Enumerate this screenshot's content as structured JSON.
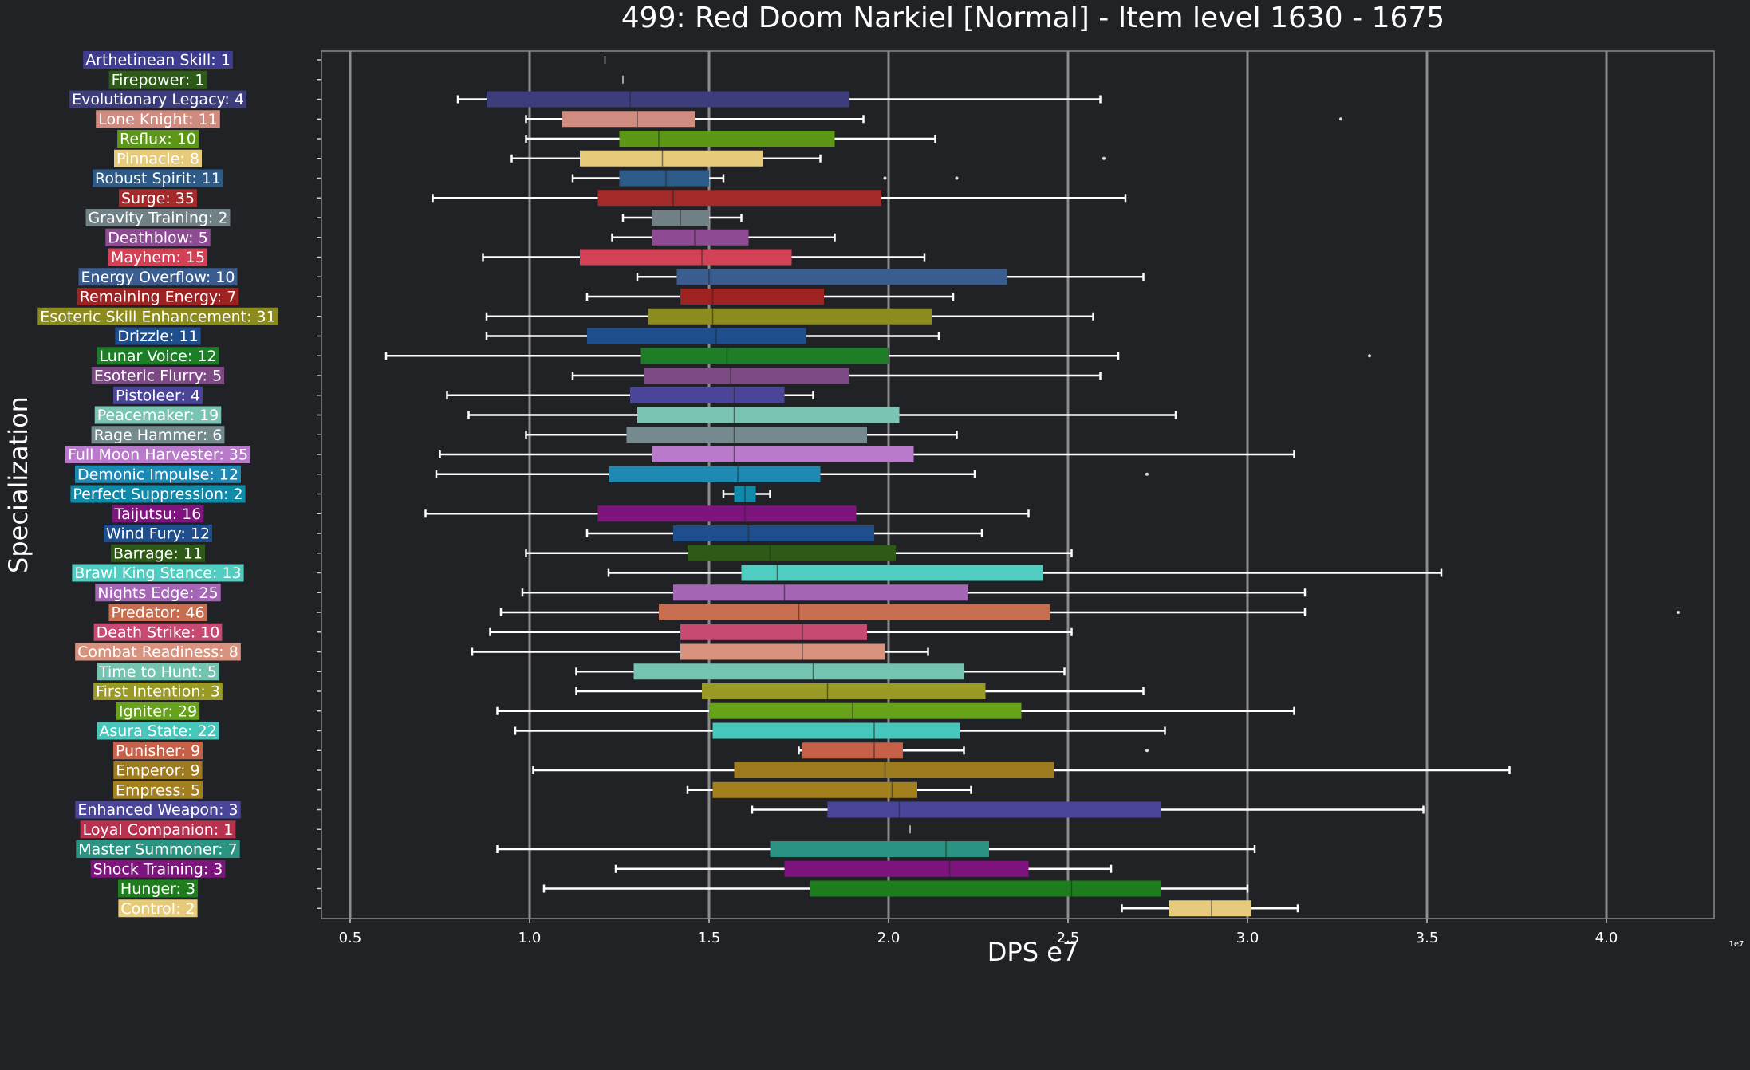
{
  "chart_data": {
    "type": "box",
    "orientation": "horizontal",
    "title": "499: Red Doom Narkiel [Normal] - Item level 1630 - 1675",
    "xlabel": "DPS e7",
    "ylabel": "Specialization",
    "offset_label": "1e7",
    "xlim": [
      0.42,
      4.3
    ],
    "xticks": [
      0.5,
      1.0,
      1.5,
      2.0,
      2.5,
      3.0,
      3.5,
      4.0
    ],
    "xtick_labels": [
      "0.5",
      "1.0",
      "1.5",
      "2.0",
      "2.5",
      "3.0",
      "3.5",
      "4.0"
    ],
    "grid": "vertical",
    "categories": [
      {
        "label": "Arthetinean Skill: 1",
        "color": "#3e3d8f",
        "whislo": 1.21,
        "q1": 1.21,
        "med": 1.21,
        "q3": 1.21,
        "whishi": 1.21,
        "fliers": []
      },
      {
        "label": "Firepower: 1",
        "color": "#2e5a17",
        "whislo": 1.26,
        "q1": 1.26,
        "med": 1.26,
        "q3": 1.26,
        "whishi": 1.26,
        "fliers": []
      },
      {
        "label": "Evolutionary Legacy: 4",
        "color": "#3e3d7b",
        "whislo": 0.8,
        "q1": 0.88,
        "med": 1.28,
        "q3": 1.89,
        "whishi": 2.59,
        "fliers": []
      },
      {
        "label": "Lone Knight: 11",
        "color": "#d08c80",
        "whislo": 0.99,
        "q1": 1.09,
        "med": 1.3,
        "q3": 1.46,
        "whishi": 1.93,
        "fliers": [
          3.26
        ]
      },
      {
        "label": "Reflux: 10",
        "color": "#5c9716",
        "whislo": 0.99,
        "q1": 1.25,
        "med": 1.36,
        "q3": 1.85,
        "whishi": 2.13,
        "fliers": []
      },
      {
        "label": "Pinnacle: 8",
        "color": "#e6cc7a",
        "whislo": 0.95,
        "q1": 1.14,
        "med": 1.37,
        "q3": 1.65,
        "whishi": 1.81,
        "fliers": [
          2.6
        ]
      },
      {
        "label": "Robust Spirit: 11",
        "color": "#2e5a87",
        "whislo": 1.12,
        "q1": 1.25,
        "med": 1.38,
        "q3": 1.5,
        "whishi": 1.54,
        "fliers": [
          1.99,
          2.19
        ]
      },
      {
        "label": "Surge: 35",
        "color": "#a22a2a",
        "whislo": 0.73,
        "q1": 1.19,
        "med": 1.4,
        "q3": 1.98,
        "whishi": 2.66,
        "fliers": []
      },
      {
        "label": "Gravity Training: 2",
        "color": "#708085",
        "whislo": 1.26,
        "q1": 1.34,
        "med": 1.42,
        "q3": 1.5,
        "whishi": 1.59,
        "fliers": []
      },
      {
        "label": "Deathblow: 5",
        "color": "#8e4b93",
        "whislo": 1.23,
        "q1": 1.34,
        "med": 1.46,
        "q3": 1.61,
        "whishi": 1.85,
        "fliers": []
      },
      {
        "label": "Mayhem: 15",
        "color": "#d24155",
        "whislo": 0.87,
        "q1": 1.14,
        "med": 1.48,
        "q3": 1.73,
        "whishi": 2.1,
        "fliers": []
      },
      {
        "label": "Energy Overflow: 10",
        "color": "#3a5d8f",
        "whislo": 1.3,
        "q1": 1.41,
        "med": 1.5,
        "q3": 2.33,
        "whishi": 2.71,
        "fliers": []
      },
      {
        "label": "Remaining Energy: 7",
        "color": "#9e2222",
        "whislo": 1.16,
        "q1": 1.42,
        "med": 1.51,
        "q3": 1.82,
        "whishi": 2.18,
        "fliers": []
      },
      {
        "label": "Esoteric Skill Enhancement: 31",
        "color": "#8c8c1e",
        "whislo": 0.88,
        "q1": 1.33,
        "med": 1.51,
        "q3": 2.12,
        "whishi": 2.57,
        "fliers": []
      },
      {
        "label": "Drizzle: 11",
        "color": "#1e4e8c",
        "whislo": 0.88,
        "q1": 1.16,
        "med": 1.52,
        "q3": 1.77,
        "whishi": 2.14,
        "fliers": []
      },
      {
        "label": "Lunar Voice: 12",
        "color": "#1e7e28",
        "whislo": 0.6,
        "q1": 1.31,
        "med": 1.55,
        "q3": 2.0,
        "whishi": 2.64,
        "fliers": [
          3.34
        ]
      },
      {
        "label": "Esoteric Flurry: 5",
        "color": "#7e4a86",
        "whislo": 1.12,
        "q1": 1.32,
        "med": 1.56,
        "q3": 1.89,
        "whishi": 2.59,
        "fliers": []
      },
      {
        "label": "Pistoleer: 4",
        "color": "#4a4599",
        "whislo": 0.77,
        "q1": 1.28,
        "med": 1.57,
        "q3": 1.71,
        "whishi": 1.79,
        "fliers": []
      },
      {
        "label": "Peacemaker: 19",
        "color": "#79c4b3",
        "whislo": 0.83,
        "q1": 1.3,
        "med": 1.57,
        "q3": 2.03,
        "whishi": 2.8,
        "fliers": []
      },
      {
        "label": "Rage Hammer: 6",
        "color": "#748a8f",
        "whislo": 0.99,
        "q1": 1.27,
        "med": 1.57,
        "q3": 1.94,
        "whishi": 2.19,
        "fliers": []
      },
      {
        "label": "Full Moon Harvester: 35",
        "color": "#b97acb",
        "whislo": 0.75,
        "q1": 1.34,
        "med": 1.57,
        "q3": 2.07,
        "whishi": 3.13,
        "fliers": []
      },
      {
        "label": "Demonic Impulse: 12",
        "color": "#1e89b3",
        "whislo": 0.74,
        "q1": 1.22,
        "med": 1.58,
        "q3": 1.81,
        "whishi": 2.24,
        "fliers": [
          2.72
        ]
      },
      {
        "label": "Perfect Suppression: 2",
        "color": "#0f8aa8",
        "whislo": 1.54,
        "q1": 1.57,
        "med": 1.6,
        "q3": 1.63,
        "whishi": 1.67,
        "fliers": []
      },
      {
        "label": "Taijutsu: 16",
        "color": "#7e147e",
        "whislo": 0.71,
        "q1": 1.19,
        "med": 1.6,
        "q3": 1.91,
        "whishi": 2.39,
        "fliers": []
      },
      {
        "label": "Wind Fury: 12",
        "color": "#1e4e8c",
        "whislo": 1.16,
        "q1": 1.4,
        "med": 1.61,
        "q3": 1.96,
        "whishi": 2.26,
        "fliers": []
      },
      {
        "label": "Barrage: 11",
        "color": "#2e5a17",
        "whislo": 0.99,
        "q1": 1.44,
        "med": 1.67,
        "q3": 2.02,
        "whishi": 2.51,
        "fliers": []
      },
      {
        "label": "Brawl King Stance: 13",
        "color": "#50cdc0",
        "whislo": 1.22,
        "q1": 1.59,
        "med": 1.69,
        "q3": 2.43,
        "whishi": 3.54,
        "fliers": []
      },
      {
        "label": "Nights Edge: 25",
        "color": "#a466b5",
        "whislo": 0.98,
        "q1": 1.4,
        "med": 1.71,
        "q3": 2.22,
        "whishi": 3.16,
        "fliers": []
      },
      {
        "label": "Predator: 46",
        "color": "#c76e50",
        "whislo": 0.92,
        "q1": 1.36,
        "med": 1.75,
        "q3": 2.45,
        "whishi": 3.16,
        "fliers": [
          4.2
        ]
      },
      {
        "label": "Death Strike: 10",
        "color": "#c74a73",
        "whislo": 0.89,
        "q1": 1.42,
        "med": 1.76,
        "q3": 1.94,
        "whishi": 2.51,
        "fliers": []
      },
      {
        "label": "Combat Readiness: 8",
        "color": "#d9927d",
        "whislo": 0.84,
        "q1": 1.42,
        "med": 1.76,
        "q3": 1.99,
        "whishi": 2.11,
        "fliers": []
      },
      {
        "label": "Time to Hunt: 5",
        "color": "#75c4b1",
        "whislo": 1.13,
        "q1": 1.29,
        "med": 1.79,
        "q3": 2.21,
        "whishi": 2.49,
        "fliers": []
      },
      {
        "label": "First Intention: 3",
        "color": "#9a9a26",
        "whislo": 1.13,
        "q1": 1.48,
        "med": 1.83,
        "q3": 2.27,
        "whishi": 2.71,
        "fliers": []
      },
      {
        "label": "Igniter: 29",
        "color": "#66a21a",
        "whislo": 0.91,
        "q1": 1.5,
        "med": 1.9,
        "q3": 2.37,
        "whishi": 3.13,
        "fliers": []
      },
      {
        "label": "Asura State: 22",
        "color": "#47c6bb",
        "whislo": 0.96,
        "q1": 1.51,
        "med": 1.96,
        "q3": 2.2,
        "whishi": 2.77,
        "fliers": []
      },
      {
        "label": "Punisher: 9",
        "color": "#c76048",
        "whislo": 1.75,
        "q1": 1.76,
        "med": 1.96,
        "q3": 2.04,
        "whishi": 2.21,
        "fliers": [
          2.72
        ]
      },
      {
        "label": "Emperor: 9",
        "color": "#9e7a1e",
        "whislo": 1.01,
        "q1": 1.57,
        "med": 1.99,
        "q3": 2.46,
        "whishi": 3.73,
        "fliers": []
      },
      {
        "label": "Empress: 5",
        "color": "#a3801e",
        "whislo": 1.44,
        "q1": 1.51,
        "med": 2.01,
        "q3": 2.08,
        "whishi": 2.23,
        "fliers": []
      },
      {
        "label": "Enhanced Weapon: 3",
        "color": "#4a4599",
        "whislo": 1.62,
        "q1": 1.83,
        "med": 2.03,
        "q3": 2.76,
        "whishi": 3.49,
        "fliers": []
      },
      {
        "label": "Loyal Companion: 1",
        "color": "#b8324f",
        "whislo": 2.06,
        "q1": 2.06,
        "med": 2.06,
        "q3": 2.06,
        "whishi": 2.06,
        "fliers": []
      },
      {
        "label": "Master Summoner: 7",
        "color": "#2a9381",
        "whislo": 0.91,
        "q1": 1.67,
        "med": 2.16,
        "q3": 2.28,
        "whishi": 3.02,
        "fliers": []
      },
      {
        "label": "Shock Training: 3",
        "color": "#7e147e",
        "whislo": 1.24,
        "q1": 1.71,
        "med": 2.17,
        "q3": 2.39,
        "whishi": 2.62,
        "fliers": []
      },
      {
        "label": "Hunger: 3",
        "color": "#1e7e1e",
        "whislo": 1.04,
        "q1": 1.78,
        "med": 2.51,
        "q3": 2.76,
        "whishi": 3.0,
        "fliers": []
      },
      {
        "label": "Control: 2",
        "color": "#e6cc7a",
        "whislo": 2.65,
        "q1": 2.78,
        "med": 2.9,
        "q3": 3.01,
        "whishi": 3.14,
        "fliers": []
      }
    ]
  }
}
